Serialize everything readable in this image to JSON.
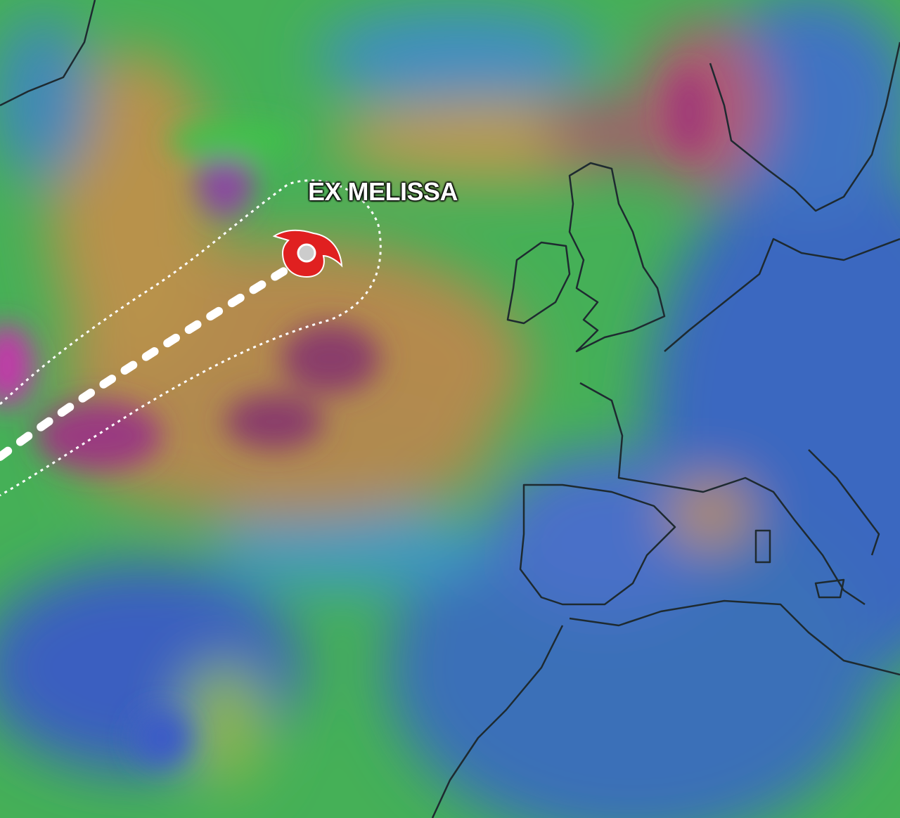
{
  "map": {
    "storm": {
      "label": "EX MELISSA",
      "icon": "hurricane-icon",
      "icon_color": "#e02020"
    },
    "forecast_track": "dashed-cone",
    "colors": {
      "calm": "#3b6fc0",
      "moderate": "#3fc24a",
      "strong": "#b8904a",
      "very_strong": "#9a3a78"
    }
  }
}
